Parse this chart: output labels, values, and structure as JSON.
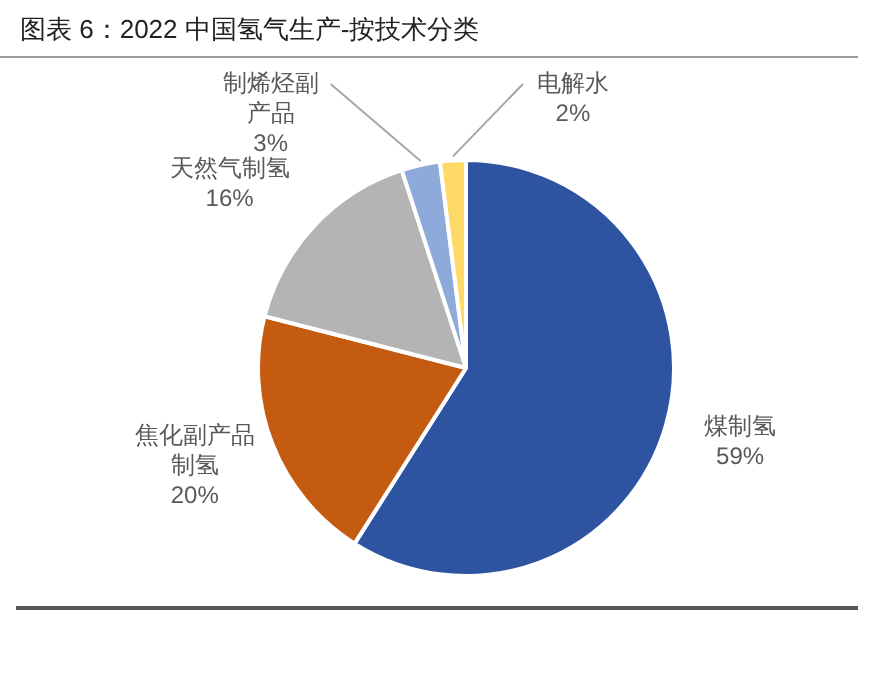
{
  "chart_data": {
    "type": "pie",
    "title": "图表 6：2022 中国氢气生产-按技术分类",
    "categories": [
      "煤制氢",
      "焦化副产品制氢",
      "天然气制氢",
      "制烯烃副产品",
      "电解水"
    ],
    "values": [
      59,
      20,
      16,
      3,
      2
    ],
    "value_labels": [
      "59%",
      "20%",
      "16%",
      "3%",
      "2%"
    ],
    "colors": [
      "#2e54a1",
      "#c55a11",
      "#b4b4b4",
      "#8eaadb",
      "#ffd966"
    ],
    "legend": false
  }
}
